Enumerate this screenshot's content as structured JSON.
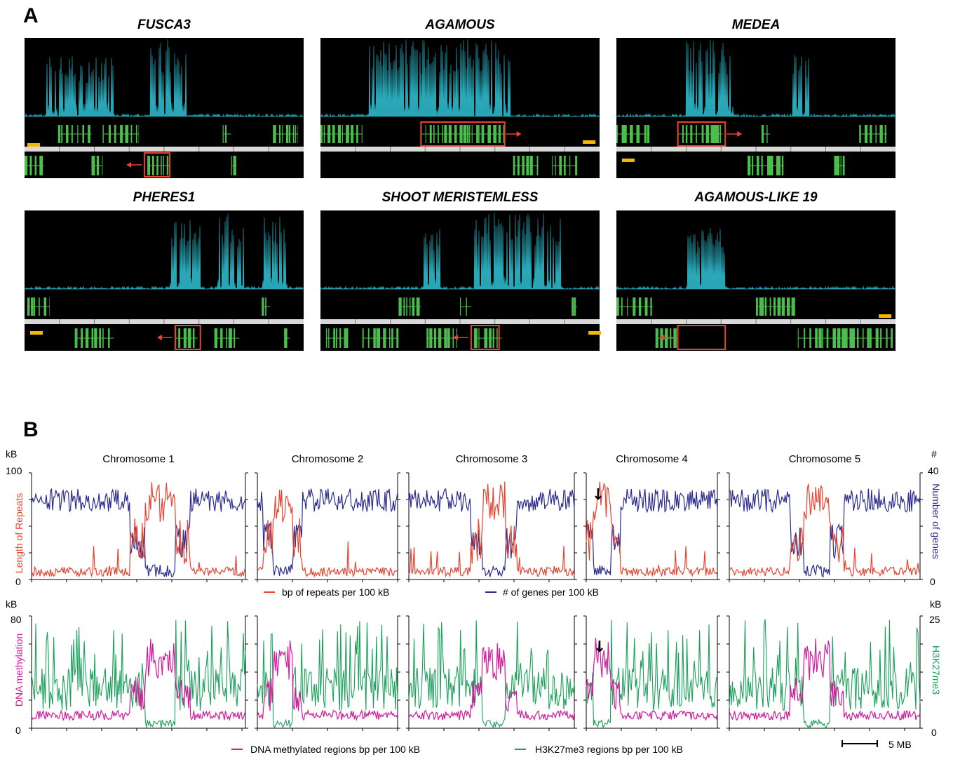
{
  "panel_a": {
    "letter": "A",
    "genes": [
      {
        "name": "FUSCA3",
        "scalebar": "left"
      },
      {
        "name": "AGAMOUS",
        "scalebar": "right"
      },
      {
        "name": "MEDEA",
        "scalebar": "left-bottom"
      },
      {
        "name": "PHERES1",
        "scalebar": "left-bottom"
      },
      {
        "name": "SHOOT MERISTEMLESS",
        "scalebar": "right-bottom"
      },
      {
        "name": "AGAMOUS-LIKE 19",
        "scalebar": "right"
      }
    ],
    "colors": {
      "background": "#000000",
      "signal": "#2aa8b8",
      "gene": "#4bbf4b",
      "highlight": "#e8432e",
      "scale": "#f5b800",
      "ruler": "#d8d8d8"
    }
  },
  "panel_b": {
    "letter": "B",
    "chromosomes": [
      "Chromosome 1",
      "Chromosome 2",
      "Chromosome 3",
      "Chromosome 4",
      "Chromosome 5"
    ],
    "top": {
      "left_unit": "kB",
      "right_unit": "#",
      "left_max": "100",
      "left_min": "0",
      "right_max": "40",
      "right_min": "0",
      "left_label": "Length of Repeats",
      "right_label": "Number of genes",
      "legend": [
        "bp of repeats per 100 kB",
        "# of genes per 100 kB"
      ]
    },
    "bottom": {
      "left_unit": "kB",
      "right_unit": "kB",
      "left_max": "80",
      "left_min": "0",
      "right_max": "25",
      "right_min": "0",
      "left_label": "DNA methylation",
      "right_label": "H3K27me3",
      "legend": [
        "DNA methylated regions bp per 100 kB",
        "H3K27me3 regions bp per 100 kB"
      ]
    },
    "scale_label": "5 MB",
    "arrow_glyph": "↓",
    "colors": {
      "repeats": "#e8432e",
      "genes": "#2b2b8f",
      "methylation": "#d4189c",
      "h3k27me3": "#1aa05a"
    }
  },
  "chart_data": [
    {
      "type": "line",
      "title": "",
      "ylabel": "Length of Repeats",
      "y2label": "Number of genes",
      "ylim": [
        0,
        100
      ],
      "y2lim": [
        0,
        40
      ],
      "centromere_fraction": [
        0.6,
        0.18,
        0.51,
        0.12,
        0.46
      ],
      "series": [
        {
          "name": "bp of repeats per 100 kB",
          "baseline": 5,
          "peak": 90
        },
        {
          "name": "# of genes per 100 kB",
          "baseline": 31,
          "trough": 2
        }
      ]
    },
    {
      "type": "line",
      "title": "",
      "ylabel": "DNA methylation",
      "y2label": "H3K27me3",
      "ylim": [
        0,
        80
      ],
      "y2lim": [
        0,
        25
      ],
      "centromere_fraction": [
        0.6,
        0.18,
        0.51,
        0.12,
        0.46
      ],
      "series": [
        {
          "name": "DNA methylated regions bp per 100 kB",
          "baseline": 10,
          "peak": 66
        },
        {
          "name": "H3K27me3 regions bp per 100 kB",
          "baseline": 11,
          "peak": 24
        }
      ]
    }
  ]
}
